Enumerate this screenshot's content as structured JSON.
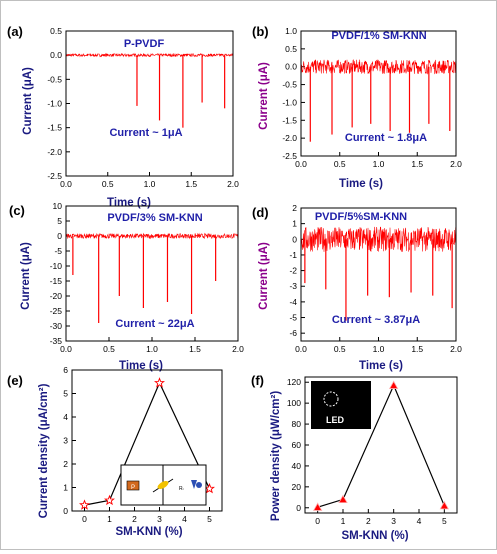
{
  "colors": {
    "signal": "#ff0000",
    "title_blue": "#1f1fa8",
    "axis_black": "#000000",
    "ylabel_purple": "#8b008b",
    "ylabel_navy": "#1a1a80",
    "led_bg": "#000000",
    "led_text": "#ffffff",
    "circuit_box": "#000000",
    "circuit_orange": "#d2691e",
    "circuit_yellow": "#f2c200",
    "circuit_blue": "#2c4fb4"
  },
  "charts": [
    {
      "panel_label": "(a)",
      "type": "line",
      "title": "P-PVDF",
      "annotation": "Current ~ 1μA",
      "xlabel": "Time (s)",
      "ylabel": "Current (μA)",
      "xlim": [
        0,
        2.0
      ],
      "ylim": [
        -2.5,
        0.5
      ],
      "xticks": [
        "0.0",
        "0.5",
        "1.0",
        "1.5",
        "2.0"
      ],
      "yticks": [
        "0.5",
        "0.0",
        "-0.5",
        "-1.0",
        "-1.5",
        "-2.0",
        "-2.5"
      ],
      "noise_amplitude": 0.03,
      "spikes": [
        {
          "x": 0.85,
          "y": -1.05
        },
        {
          "x": 1.12,
          "y": -1.35
        },
        {
          "x": 1.4,
          "y": -1.5
        },
        {
          "x": 1.63,
          "y": -0.98
        },
        {
          "x": 1.9,
          "y": -1.1
        }
      ],
      "series_color": "#ff0000"
    },
    {
      "panel_label": "(b)",
      "type": "line",
      "title": "PVDF/1% SM-KNN",
      "annotation": "Current ~ 1.8μA",
      "xlabel": "Time (s)",
      "ylabel": "Current (μA)",
      "xlim": [
        0,
        2.0
      ],
      "ylim": [
        -2.5,
        1.0
      ],
      "xticks": [
        "0.0",
        "0.5",
        "1.0",
        "1.5",
        "2.0"
      ],
      "yticks": [
        "1.0",
        "0.5",
        "0.0",
        "-0.5",
        "-1.0",
        "-1.5",
        "-2.0",
        "-2.5"
      ],
      "noise_amplitude": 0.2,
      "spikes": [
        {
          "x": 0.12,
          "y": -2.1
        },
        {
          "x": 0.4,
          "y": -1.9
        },
        {
          "x": 0.66,
          "y": -1.7
        },
        {
          "x": 0.9,
          "y": -1.6
        },
        {
          "x": 1.15,
          "y": -1.8
        },
        {
          "x": 1.4,
          "y": -1.85
        },
        {
          "x": 1.65,
          "y": -1.6
        },
        {
          "x": 1.92,
          "y": -1.8
        }
      ],
      "series_color": "#ff0000"
    },
    {
      "panel_label": "(c)",
      "type": "line",
      "title": "PVDF/3% SM-KNN",
      "annotation": "Current ~ 22μA",
      "xlabel": "Time (s)",
      "ylabel": "Current (μA)",
      "xlim": [
        0,
        2.0
      ],
      "ylim": [
        -35,
        10
      ],
      "xticks": [
        "0.0",
        "0.5",
        "1.0",
        "1.5",
        "2.0"
      ],
      "yticks": [
        "10",
        "5",
        "0",
        "-5",
        "-10",
        "-15",
        "-20",
        "-25",
        "-30",
        "-35"
      ],
      "noise_amplitude": 0.8,
      "spikes": [
        {
          "x": 0.08,
          "y": -13
        },
        {
          "x": 0.38,
          "y": -29
        },
        {
          "x": 0.62,
          "y": -20
        },
        {
          "x": 0.9,
          "y": -24
        },
        {
          "x": 1.18,
          "y": -22
        },
        {
          "x": 1.46,
          "y": -26
        },
        {
          "x": 1.74,
          "y": -15
        }
      ],
      "series_color": "#ff0000"
    },
    {
      "panel_label": "(d)",
      "type": "line",
      "title": "PVDF/5%SM-KNN",
      "annotation": "Current ~ 3.87μA",
      "xlabel": "Time (s)",
      "ylabel": "Current (μA)",
      "xlim": [
        0,
        2.0
      ],
      "ylim": [
        -6.5,
        2.0
      ],
      "xticks": [
        "0.0",
        "0.5",
        "1.0",
        "1.5",
        "2.0"
      ],
      "yticks": [
        "2",
        "1",
        "0",
        "-1",
        "-2",
        "-3",
        "-4",
        "-5",
        "-6"
      ],
      "noise_amplitude": 0.8,
      "spikes": [
        {
          "x": 0.05,
          "y": -2.8
        },
        {
          "x": 0.32,
          "y": -3.2
        },
        {
          "x": 0.58,
          "y": -5.2
        },
        {
          "x": 0.86,
          "y": -3.6
        },
        {
          "x": 1.14,
          "y": -3.7
        },
        {
          "x": 1.42,
          "y": -3.4
        },
        {
          "x": 1.7,
          "y": -3.6
        },
        {
          "x": 1.95,
          "y": -4.4
        }
      ],
      "series_color": "#ff0000"
    },
    {
      "panel_label": "(e)",
      "type": "line",
      "xlabel": "SM-KNN (%)",
      "ylabel": "Current density (μA/cm²)",
      "xlim": [
        -0.5,
        5.5
      ],
      "ylim": [
        0,
        6
      ],
      "xticks": [
        "0",
        "1",
        "2",
        "3",
        "4",
        "5"
      ],
      "yticks": [
        "0",
        "1",
        "2",
        "3",
        "4",
        "5",
        "6"
      ],
      "x": [
        0,
        1,
        3,
        5
      ],
      "y": [
        0.25,
        0.45,
        5.45,
        0.95
      ],
      "marker": "star",
      "inset_labels": [
        "P",
        "Rₗ"
      ]
    },
    {
      "panel_label": "(f)",
      "type": "line",
      "xlabel": "SM-KNN (%)",
      "ylabel": "Power density (μW/cm²)",
      "xlim": [
        -0.5,
        5.5
      ],
      "ylim": [
        -5,
        125
      ],
      "xticks": [
        "0",
        "1",
        "2",
        "3",
        "4",
        "5"
      ],
      "yticks": [
        "0",
        "20",
        "40",
        "60",
        "80",
        "100",
        "120"
      ],
      "x": [
        0,
        1,
        3,
        5
      ],
      "y": [
        0.5,
        8,
        117,
        2
      ],
      "marker": "triangle",
      "inset_text": "LED"
    }
  ]
}
